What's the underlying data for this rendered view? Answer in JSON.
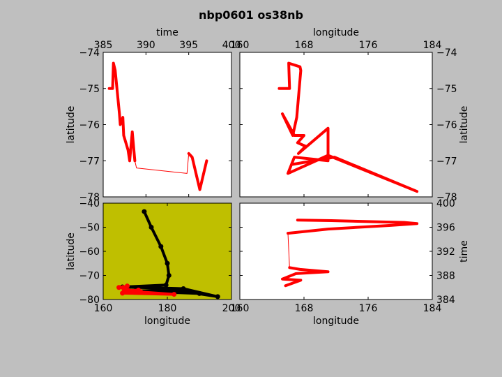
{
  "title": "nbp0601 os38nb",
  "chart_data": [
    {
      "type": "line",
      "xlabel": "time",
      "ylabel": "latitude",
      "xaxis": "top",
      "yaxis": "left",
      "background": "#ffffff",
      "xlim": [
        385,
        400
      ],
      "xticks": [
        385,
        390,
        395,
        400
      ],
      "ylim": [
        -78,
        -74
      ],
      "yticks": [
        {
          "value": -74,
          "label": "−74"
        },
        {
          "value": -75,
          "label": "−75"
        },
        {
          "value": -76,
          "label": "−76"
        },
        {
          "value": -77,
          "label": "−77"
        },
        {
          "value": -78,
          "label": "−78"
        }
      ],
      "series": [
        {
          "color": "#ff0000",
          "linewidth": 4,
          "x": [
            385.7,
            386.1,
            386.2,
            386.4,
            386.9,
            387.0,
            387.3,
            387.4,
            387.9,
            388.1,
            388.4,
            388.7
          ],
          "values": [
            -75.0,
            -75.0,
            -74.3,
            -74.5,
            -75.7,
            -76.0,
            -75.8,
            -76.3,
            -76.7,
            -77.0,
            -76.2,
            -77.0
          ]
        },
        {
          "color": "#ff0000",
          "linewidth": 1,
          "x": [
            388.7,
            388.9,
            394.8,
            395.0
          ],
          "values": [
            -77.0,
            -77.2,
            -77.35,
            -76.8
          ]
        },
        {
          "color": "#ff0000",
          "linewidth": 4,
          "x": [
            395.0,
            395.4,
            396.3,
            397.1
          ],
          "values": [
            -76.8,
            -76.9,
            -77.8,
            -77.0
          ]
        }
      ]
    },
    {
      "type": "line",
      "xlabel": "longitude",
      "ylabel": "latitude",
      "xaxis": "top",
      "yaxis": "right",
      "background": "#ffffff",
      "xlim": [
        160,
        184
      ],
      "xticks": [
        160,
        168,
        176,
        184
      ],
      "ylim": [
        -78,
        -74
      ],
      "yticks": [
        {
          "value": -74,
          "label": "−74"
        },
        {
          "value": -75,
          "label": "−75"
        },
        {
          "value": -76,
          "label": "−76"
        },
        {
          "value": -77,
          "label": "−77"
        },
        {
          "value": -78,
          "label": "−78"
        }
      ],
      "series": [
        {
          "color": "#ff0000",
          "linewidth": 4,
          "x": [
            164.9,
            166.2,
            166.1,
            167.5,
            167.6,
            167.1,
            166.6,
            165.3,
            166.8,
            168.0,
            167.2,
            168.2,
            167.3,
            171.0,
            171.0,
            166.8,
            166.0,
            171.0,
            182.1,
            171.8,
            166.6
          ],
          "values": [
            -75.0,
            -75.0,
            -74.3,
            -74.4,
            -74.5,
            -75.8,
            -76.3,
            -75.7,
            -76.3,
            -76.3,
            -76.5,
            -76.6,
            -76.8,
            -76.1,
            -77.0,
            -76.9,
            -77.35,
            -76.85,
            -77.85,
            -76.9,
            -77.1
          ]
        }
      ]
    },
    {
      "type": "line",
      "xlabel": "longitude",
      "ylabel": "latitude",
      "xaxis": "bottom",
      "yaxis": "left",
      "background": "#bfbf00",
      "xlim": [
        160,
        200
      ],
      "xticks": [
        160,
        180,
        200
      ],
      "ylim": [
        -80,
        -40
      ],
      "yticks": [
        {
          "value": -40,
          "label": "−40"
        },
        {
          "value": -50,
          "label": "−50"
        },
        {
          "value": -60,
          "label": "−60"
        },
        {
          "value": -70,
          "label": "−70"
        },
        {
          "value": -80,
          "label": "−80"
        }
      ],
      "series": [
        {
          "color": "#000000",
          "linewidth": 4,
          "marker": true,
          "x": [
            172.8,
            175,
            178,
            180,
            180.5,
            179.6,
            166,
            185,
            195.7,
            182,
            170,
            190
          ],
          "values": [
            -43.5,
            -50,
            -58,
            -65,
            -70,
            -74,
            -74.8,
            -75.5,
            -78.8,
            -76,
            -76.5,
            -77.5
          ]
        },
        {
          "color": "#ff0000",
          "linewidth": 4,
          "marker": true,
          "x": [
            164.9,
            166.2,
            167.5,
            166.6,
            168,
            171,
            171,
            166,
            182.1,
            171.8
          ],
          "values": [
            -75,
            -75,
            -74.4,
            -76.3,
            -76.3,
            -76.1,
            -77,
            -77.35,
            -77.85,
            -76.9
          ]
        }
      ]
    },
    {
      "type": "line",
      "xlabel": "longitude",
      "ylabel": "time",
      "xaxis": "bottom",
      "yaxis": "right",
      "background": "#ffffff",
      "xlim": [
        160,
        184
      ],
      "xticks": [
        160,
        168,
        176,
        184
      ],
      "ylim": [
        384,
        400
      ],
      "yticks": [
        384,
        388,
        392,
        396,
        400
      ],
      "series": [
        {
          "color": "#ff0000",
          "linewidth": 4,
          "x": [
            167.2,
            171.4,
            180.5,
            182.1,
            178.8,
            171.0,
            166.0
          ],
          "values": [
            397.2,
            397.1,
            396.8,
            396.6,
            396.3,
            395.7,
            395.0
          ]
        },
        {
          "color": "#ff0000",
          "linewidth": 1,
          "x": [
            166.0,
            166.2
          ],
          "values": [
            395.0,
            389.3
          ]
        },
        {
          "color": "#ff0000",
          "linewidth": 4,
          "x": [
            166.2,
            167.5,
            171.0,
            167.0,
            165.3,
            167.6,
            165.7
          ],
          "values": [
            389.3,
            389.0,
            388.6,
            388.3,
            387.4,
            387.2,
            386.3
          ]
        }
      ]
    }
  ]
}
